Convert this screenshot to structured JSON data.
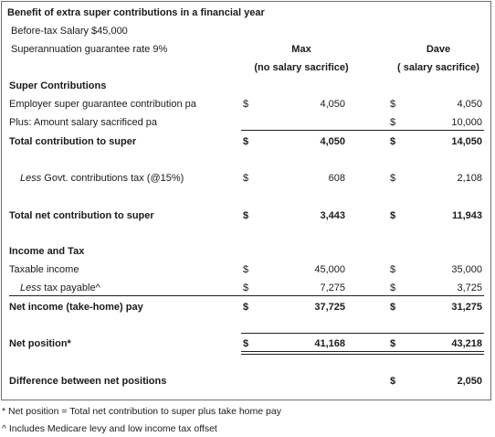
{
  "heading": "Benefit of extra super contributions  in a financial year",
  "salary_line": "Before-tax Salary $45,000",
  "rate_line": "Superannuation  guarantee rate 9%",
  "columns": {
    "max_name": "Max",
    "max_sub": "(no salary sacrifice)",
    "dave_name": "Dave",
    "dave_sub": "( salary sacrifice)"
  },
  "currency": "$",
  "sections": {
    "super": "Super Contributions",
    "income": "Income and Tax"
  },
  "rows": {
    "employer": {
      "label": "Employer super guarantee contribution pa",
      "max": "4,050",
      "dave": "4,050"
    },
    "sacrificed": {
      "label": "Plus: Amount salary sacrificed pa",
      "max": "",
      "dave": "10,000"
    },
    "total_contribution": {
      "label": "Total contribution  to super",
      "max": "4,050",
      "dave": "14,050"
    },
    "contrib_tax": {
      "label_italic": "Less",
      "label_rest": " Govt. contributions tax (@15%)",
      "max": "608",
      "dave": "2,108"
    },
    "total_net": {
      "label": "Total net contribution  to super",
      "max": "3,443",
      "dave": "11,943"
    },
    "taxable": {
      "label": "Taxable income",
      "max": "45,000",
      "dave": "35,000"
    },
    "tax_payable": {
      "label_italic": "Less",
      "label_rest": " tax payable^",
      "max": "7,275",
      "dave": "3,725"
    },
    "net_income": {
      "label": "Net income (take-home) pay",
      "max": "37,725",
      "dave": "31,275"
    },
    "net_position": {
      "label": "Net position*",
      "max": "41,168",
      "dave": "43,218"
    },
    "difference": {
      "label": "Difference between net positions",
      "max": "",
      "dave": "2,050"
    }
  },
  "footnotes": {
    "star": "* Net position = Total net contribution to super plus take home pay",
    "caret": "^ Includes Medicare levy and low income tax offset"
  }
}
